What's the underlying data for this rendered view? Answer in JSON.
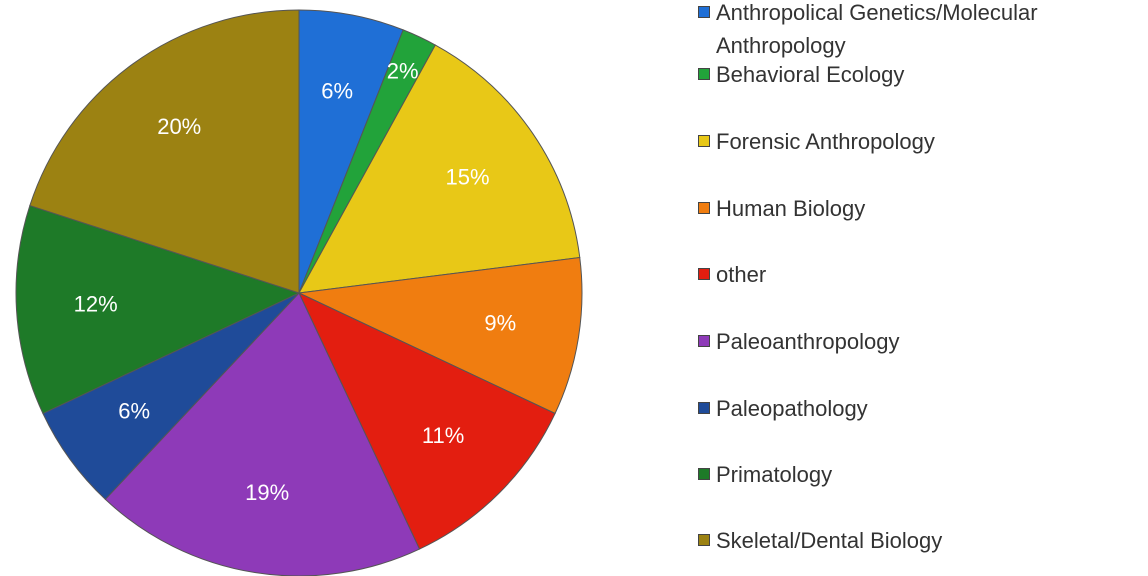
{
  "chart_data": {
    "type": "pie",
    "categories": [
      "Anthropolical Genetics/Molecular Anthropology",
      "Behavioral Ecology",
      "Forensic Anthropology",
      "Human Biology",
      "other",
      "Paleoanthropology",
      "Paleopathology",
      "Primatology",
      "Skeletal/Dental Biology"
    ],
    "values": [
      6,
      2,
      15,
      9,
      11,
      19,
      6,
      12,
      20
    ],
    "value_labels": [
      "6%",
      "2%",
      "15%",
      "9%",
      "11%",
      "19%",
      "6%",
      "12%",
      "20%"
    ],
    "colors": [
      "#1f6fd6",
      "#22a33a",
      "#e8c817",
      "#f07d10",
      "#e31e10",
      "#8e3ab8",
      "#1f4b99",
      "#1e7a28",
      "#9c8212"
    ],
    "legend": "right"
  }
}
